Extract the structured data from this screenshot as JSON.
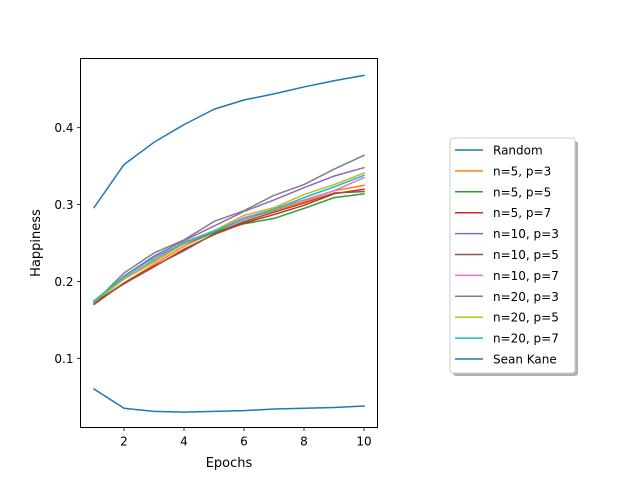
{
  "chart_data": {
    "type": "line",
    "title": "",
    "xlabel": "Epochs",
    "ylabel": "Happiness",
    "xlim": [
      0.55,
      10.45
    ],
    "ylim": [
      0.01,
      0.49
    ],
    "xticks": [
      2,
      4,
      6,
      8,
      10
    ],
    "yticks": [
      0.1,
      0.2,
      0.3,
      0.4
    ],
    "xtick_labels": [
      "2",
      "4",
      "6",
      "8",
      "10"
    ],
    "ytick_labels": [
      "0.1",
      "0.2",
      "0.3",
      "0.4"
    ],
    "grid": false,
    "legend_position": "right, outside plot",
    "x": [
      1,
      2,
      3,
      4,
      5,
      6,
      7,
      8,
      9,
      10
    ],
    "series": [
      {
        "name": "Random",
        "color": "#1f77b4",
        "values": [
          0.296,
          0.352,
          0.381,
          0.404,
          0.424,
          0.436,
          0.444,
          0.453,
          0.461,
          0.468
        ]
      },
      {
        "name": "n=5, p=3",
        "color": "#ff7f0e",
        "values": [
          0.172,
          0.198,
          0.222,
          0.246,
          0.264,
          0.281,
          0.292,
          0.304,
          0.318,
          0.325
        ]
      },
      {
        "name": "n=5, p=5",
        "color": "#2ca02c",
        "values": [
          0.173,
          0.203,
          0.228,
          0.249,
          0.264,
          0.275,
          0.282,
          0.295,
          0.309,
          0.314
        ]
      },
      {
        "name": "n=5, p=7",
        "color": "#d62728",
        "values": [
          0.172,
          0.197,
          0.219,
          0.242,
          0.261,
          0.276,
          0.287,
          0.299,
          0.314,
          0.32
        ]
      },
      {
        "name": "n=10, p=3",
        "color": "#9467bd",
        "values": [
          0.173,
          0.207,
          0.233,
          0.253,
          0.272,
          0.291,
          0.306,
          0.322,
          0.337,
          0.348
        ]
      },
      {
        "name": "n=10, p=5",
        "color": "#8c564b",
        "values": [
          0.17,
          0.198,
          0.22,
          0.24,
          0.262,
          0.278,
          0.29,
          0.302,
          0.315,
          0.317
        ]
      },
      {
        "name": "n=10, p=7",
        "color": "#e377c2",
        "values": [
          0.174,
          0.204,
          0.227,
          0.251,
          0.266,
          0.283,
          0.294,
          0.306,
          0.318,
          0.335
        ]
      },
      {
        "name": "n=20, p=3",
        "color": "#7f7f7f",
        "values": [
          0.172,
          0.211,
          0.237,
          0.254,
          0.278,
          0.292,
          0.312,
          0.326,
          0.346,
          0.364
        ]
      },
      {
        "name": "n=20, p=5",
        "color": "#bcbd22",
        "values": [
          0.174,
          0.203,
          0.225,
          0.249,
          0.266,
          0.286,
          0.296,
          0.313,
          0.326,
          0.341
        ]
      },
      {
        "name": "n=20, p=7",
        "color": "#17becf",
        "values": [
          0.175,
          0.206,
          0.231,
          0.25,
          0.265,
          0.281,
          0.294,
          0.309,
          0.323,
          0.338
        ]
      },
      {
        "name": "Sean Kane",
        "color": "#1f77b4",
        "values": [
          0.06,
          0.035,
          0.031,
          0.03,
          0.031,
          0.032,
          0.034,
          0.035,
          0.036,
          0.038
        ]
      }
    ]
  }
}
